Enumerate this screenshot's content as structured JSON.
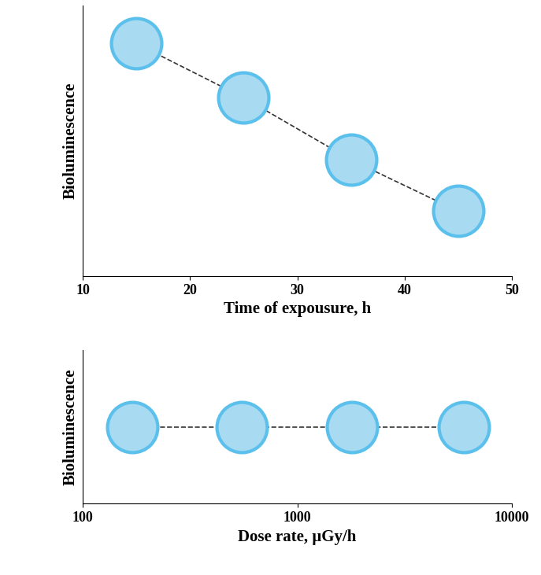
{
  "chart_data": [
    {
      "type": "line",
      "x_label": "Time of expousure, h",
      "y_label": "Bioluminescence",
      "x": [
        15,
        25,
        35,
        45
      ],
      "values": [
        0.86,
        0.66,
        0.43,
        0.24
      ],
      "xlim": [
        10,
        50
      ],
      "xticks": [
        10,
        20,
        30,
        40,
        50
      ],
      "ylim": [
        0,
        1
      ],
      "tick_labels": "x",
      "color": "#5bc0eb",
      "marker": "o",
      "line_style": "dashed"
    },
    {
      "type": "line",
      "x_label": "Dose rate, µGy/h",
      "y_label": "Bioluminescence",
      "x": [
        170,
        550,
        1800,
        6000
      ],
      "values": [
        0.5,
        0.5,
        0.5,
        0.5
      ],
      "xlim": [
        100,
        10000
      ],
      "xticks": [
        100,
        1000,
        10000
      ],
      "ylim": [
        0,
        1
      ],
      "log": "x",
      "tick_labels": "x",
      "color": "#5bc0eb",
      "marker": "o",
      "line_style": "dashed"
    }
  ]
}
